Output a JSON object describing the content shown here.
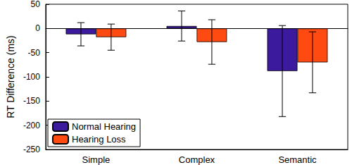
{
  "chart_data": {
    "type": "bar",
    "y_label": "RT Difference (ms)",
    "categories": [
      "Simple",
      "Complex",
      "Semantic"
    ],
    "series": [
      {
        "name": "Normal Hearing",
        "color": "#3c1a9e",
        "values": [
          -12,
          5,
          -88
        ],
        "errors": [
          24,
          31,
          94
        ]
      },
      {
        "name": "Hearing Loss",
        "color": "#ff4a12",
        "values": [
          -18,
          -28,
          -70
        ],
        "errors": [
          27,
          46,
          63
        ]
      }
    ],
    "ylim": [
      -250,
      50
    ],
    "yticks": [
      -250,
      -200,
      -150,
      -100,
      -50,
      0,
      50
    ],
    "grid": false,
    "legend": "lower left"
  }
}
